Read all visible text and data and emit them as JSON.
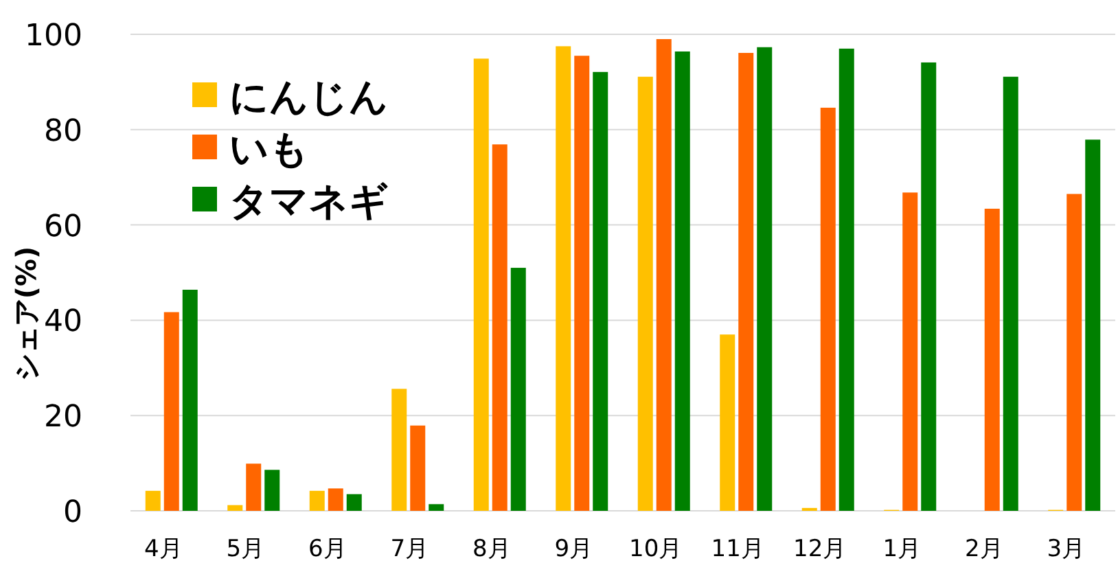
{
  "chart_data": {
    "type": "bar",
    "ylabel": "シェア(%)",
    "categories": [
      "4月",
      "5月",
      "6月",
      "7月",
      "8月",
      "9月",
      "10月",
      "11月",
      "12月",
      "1月",
      "2月",
      "3月"
    ],
    "series": [
      {
        "name": "にんじん",
        "color": "#ffc000",
        "values": [
          4.2,
          1.2,
          4.2,
          25.6,
          94.9,
          97.5,
          91.1,
          37.0,
          0.6,
          0.2,
          0,
          0.2
        ]
      },
      {
        "name": "いも",
        "color": "#ff6600",
        "values": [
          41.7,
          9.9,
          4.7,
          17.9,
          76.9,
          95.5,
          99.0,
          96.1,
          84.6,
          66.8,
          63.4,
          66.5
        ]
      },
      {
        "name": "タマネギ",
        "color": "#008000",
        "values": [
          46.4,
          8.6,
          3.5,
          1.4,
          51.0,
          92.1,
          96.4,
          97.3,
          97.0,
          94.1,
          91.1,
          77.9
        ]
      }
    ],
    "ylim": [
      0,
      100
    ],
    "yticks": [
      0,
      20,
      40,
      60,
      80,
      100
    ],
    "grid": "y",
    "legend": "top left"
  }
}
